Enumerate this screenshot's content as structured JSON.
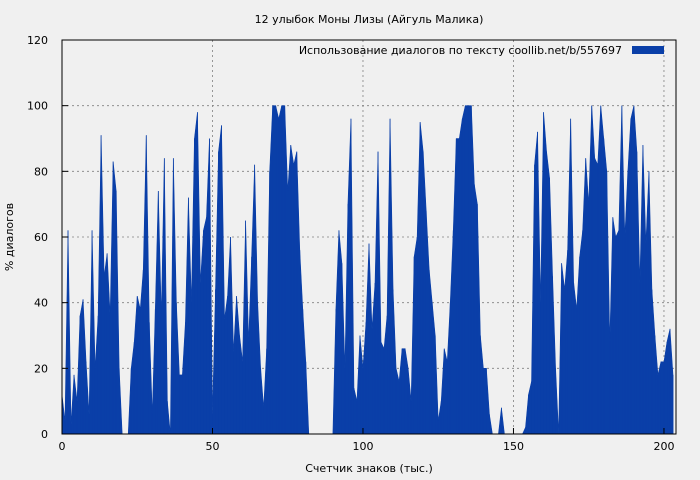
{
  "chart_data": {
    "type": "area",
    "title": "12 улыбок Моны Лизы (Айгуль Малика)",
    "xlabel": "Счетчик знаков (тыс.)",
    "ylabel": "% диалогов",
    "xlim": [
      0,
      204
    ],
    "ylim": [
      0,
      120
    ],
    "x_ticks": [
      0,
      50,
      100,
      150,
      200
    ],
    "y_ticks": [
      0,
      20,
      40,
      60,
      80,
      100,
      120
    ],
    "grid": true,
    "legend_position": "top-right",
    "series": [
      {
        "name": "Использование диалогов по тексту  coollib.net/b/557697",
        "color": "#0a3fa8",
        "x": [
          0,
          1,
          2,
          3,
          4,
          5,
          6,
          7,
          8,
          9,
          10,
          11,
          12,
          13,
          14,
          15,
          16,
          17,
          18,
          19,
          20,
          21,
          22,
          23,
          24,
          25,
          26,
          27,
          28,
          29,
          30,
          31,
          32,
          33,
          34,
          35,
          36,
          37,
          38,
          39,
          40,
          41,
          42,
          43,
          44,
          45,
          46,
          47,
          48,
          49,
          50,
          51,
          52,
          53,
          54,
          55,
          56,
          57,
          58,
          59,
          60,
          61,
          62,
          63,
          64,
          65,
          66,
          67,
          68,
          69,
          70,
          71,
          72,
          73,
          74,
          75,
          76,
          77,
          78,
          79,
          80,
          81,
          82,
          83,
          84,
          85,
          86,
          87,
          88,
          89,
          90,
          91,
          92,
          93,
          94,
          95,
          96,
          97,
          98,
          99,
          100,
          101,
          102,
          103,
          104,
          105,
          106,
          107,
          108,
          109,
          110,
          111,
          112,
          113,
          114,
          115,
          116,
          117,
          118,
          119,
          120,
          121,
          122,
          123,
          124,
          125,
          126,
          127,
          128,
          129,
          130,
          131,
          132,
          133,
          134,
          135,
          136,
          137,
          138,
          139,
          140,
          141,
          142,
          143,
          144,
          145,
          146,
          147,
          148,
          149,
          150,
          151,
          152,
          153,
          154,
          155,
          156,
          157,
          158,
          159,
          160,
          161,
          162,
          163,
          164,
          165,
          166,
          167,
          168,
          169,
          170,
          171,
          172,
          173,
          174,
          175,
          176,
          177,
          178,
          179,
          180,
          181,
          182,
          183,
          184,
          185,
          186,
          187,
          188,
          189,
          190,
          191,
          192,
          193,
          194,
          195,
          196,
          197,
          198,
          199,
          200,
          201,
          202,
          203
        ],
        "values": [
          12,
          4,
          62,
          3,
          18,
          10,
          36,
          41,
          22,
          6,
          62,
          20,
          36,
          91,
          48,
          55,
          36,
          83,
          74,
          20,
          0,
          0,
          0,
          20,
          28,
          42,
          38,
          50,
          91,
          34,
          6,
          38,
          74,
          36,
          84,
          10,
          0,
          84,
          40,
          18,
          18,
          34,
          72,
          40,
          90,
          98,
          46,
          62,
          66,
          90,
          6,
          44,
          86,
          94,
          35,
          42,
          60,
          25,
          42,
          30,
          22,
          65,
          28,
          54,
          82,
          40,
          20,
          8,
          26,
          80,
          100,
          100,
          96,
          100,
          100,
          74,
          88,
          82,
          86,
          56,
          38,
          22,
          0,
          0,
          0,
          0,
          0,
          0,
          0,
          0,
          0,
          38,
          62,
          52,
          20,
          70,
          96,
          14,
          10,
          30,
          20,
          34,
          58,
          32,
          46,
          86,
          28,
          26,
          36,
          96,
          44,
          20,
          16,
          26,
          26,
          20,
          10,
          54,
          60,
          95,
          86,
          68,
          50,
          40,
          30,
          4,
          10,
          26,
          22,
          40,
          62,
          90,
          90,
          96,
          100,
          100,
          100,
          76,
          70,
          30,
          20,
          20,
          6,
          0,
          0,
          0,
          8,
          0,
          0,
          0,
          0,
          0,
          0,
          0,
          2,
          12,
          16,
          82,
          92,
          40,
          98,
          86,
          78,
          48,
          20,
          0,
          52,
          44,
          56,
          96,
          46,
          38,
          54,
          62,
          84,
          70,
          100,
          84,
          82,
          100,
          90,
          80,
          28,
          66,
          60,
          62,
          100,
          60,
          80,
          96,
          100,
          86,
          46,
          88,
          58,
          80,
          44,
          30,
          18,
          22,
          22,
          28,
          32,
          18
        ]
      }
    ]
  }
}
